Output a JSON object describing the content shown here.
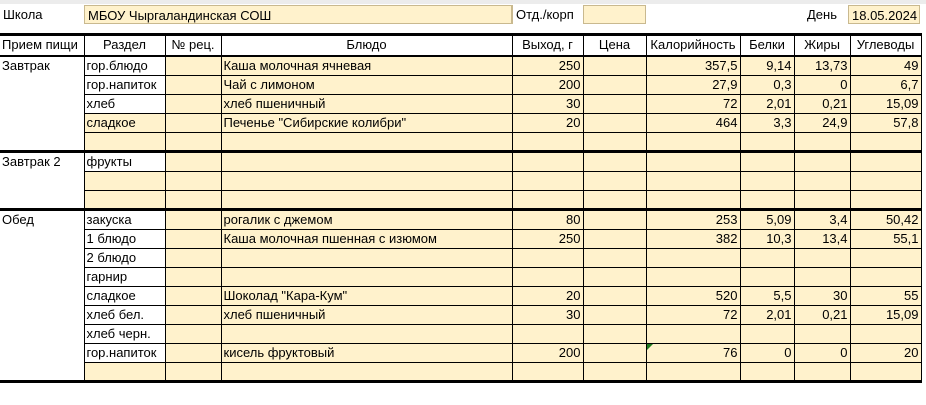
{
  "header": {
    "school_label": "Школа",
    "school_value": "МБОУ Чыргаландинская СОШ",
    "dept_label": "Отд./корп",
    "dept_value": "",
    "day_label": "День",
    "day_value": "18.05.2024"
  },
  "columns": [
    "Прием пищи",
    "Раздел",
    "№ рец.",
    "Блюдо",
    "Выход, г",
    "Цена",
    "Калорийность",
    "Белки",
    "Жиры",
    "Углеводы"
  ],
  "rows": [
    {
      "meal": "Завтрак",
      "section": "гор.блюдо",
      "recipe": "",
      "dish": "Каша молочная ячневая",
      "yield": "250",
      "price": "",
      "kcal": "357,5",
      "protein": "9,14",
      "fat": "13,73",
      "carbs": "49"
    },
    {
      "meal": "",
      "section": "гор.напиток",
      "recipe": "",
      "dish": "Чай с лимоном",
      "yield": "200",
      "price": "",
      "kcal": "27,9",
      "protein": "0,3",
      "fat": "0",
      "carbs": "6,7"
    },
    {
      "meal": "",
      "section": "хлеб",
      "recipe": "",
      "dish": "хлеб пшеничный",
      "yield": "30",
      "price": "",
      "kcal": "72",
      "protein": "2,01",
      "fat": "0,21",
      "carbs": "15,09"
    },
    {
      "meal": "",
      "section": "сладкое",
      "recipe": "",
      "dish": "Печенье \"Сибирские колибри\"",
      "yield": "20",
      "price": "",
      "kcal": "464",
      "protein": "3,3",
      "fat": "24,9",
      "carbs": "57,8",
      "section_yellow": true
    },
    {
      "meal": "",
      "section": "",
      "recipe": "",
      "dish": "",
      "yield": "",
      "price": "",
      "kcal": "",
      "protein": "",
      "fat": "",
      "carbs": "",
      "end": true
    },
    {
      "meal": "Завтрак 2",
      "section": "фрукты",
      "recipe": "",
      "dish": "",
      "yield": "",
      "price": "",
      "kcal": "",
      "protein": "",
      "fat": "",
      "carbs": ""
    },
    {
      "meal": "",
      "section": "",
      "recipe": "",
      "dish": "",
      "yield": "",
      "price": "",
      "kcal": "",
      "protein": "",
      "fat": "",
      "carbs": ""
    },
    {
      "meal": "",
      "section": "",
      "recipe": "",
      "dish": "",
      "yield": "",
      "price": "",
      "kcal": "",
      "protein": "",
      "fat": "",
      "carbs": "",
      "end": true
    },
    {
      "meal": "Обед",
      "section": "закуска",
      "recipe": "",
      "dish": "рогалик с джемом",
      "yield": "80",
      "price": "",
      "kcal": "253",
      "protein": "5,09",
      "fat": "3,4",
      "carbs": "50,42"
    },
    {
      "meal": "",
      "section": "1 блюдо",
      "recipe": "",
      "dish": "Каша молочная пшенная с изюмом",
      "yield": "250",
      "price": "",
      "kcal": "382",
      "protein": "10,3",
      "fat": "13,4",
      "carbs": "55,1"
    },
    {
      "meal": "",
      "section": "2 блюдо",
      "recipe": "",
      "dish": "",
      "yield": "",
      "price": "",
      "kcal": "",
      "protein": "",
      "fat": "",
      "carbs": ""
    },
    {
      "meal": "",
      "section": "гарнир",
      "recipe": "",
      "dish": "",
      "yield": "",
      "price": "",
      "kcal": "",
      "protein": "",
      "fat": "",
      "carbs": ""
    },
    {
      "meal": "",
      "section": "сладкое",
      "recipe": "",
      "dish": "Шоколад \"Кара-Кум\"",
      "yield": "20",
      "price": "",
      "kcal": "520",
      "protein": "5,5",
      "fat": "30",
      "carbs": "55"
    },
    {
      "meal": "",
      "section": "хлеб бел.",
      "recipe": "",
      "dish": "хлеб пшеничный",
      "yield": "30",
      "price": "",
      "kcal": "72",
      "protein": "2,01",
      "fat": "0,21",
      "carbs": "15,09"
    },
    {
      "meal": "",
      "section": "хлеб черн.",
      "recipe": "",
      "dish": "",
      "yield": "",
      "price": "",
      "kcal": "",
      "protein": "",
      "fat": "",
      "carbs": ""
    },
    {
      "meal": "",
      "section": "гор.напиток",
      "recipe": "",
      "dish": "кисель фруктовый",
      "yield": "200",
      "price": "",
      "kcal": "76",
      "protein": "0",
      "fat": "0",
      "carbs": "20",
      "kcal_flag": true
    },
    {
      "meal": "",
      "section": "",
      "recipe": "",
      "dish": "",
      "yield": "",
      "price": "",
      "kcal": "",
      "protein": "",
      "fat": "",
      "carbs": "",
      "end": true
    }
  ],
  "colors": {
    "cell_fill": "#fff2cc",
    "error_flag": "#1e7b1e"
  }
}
